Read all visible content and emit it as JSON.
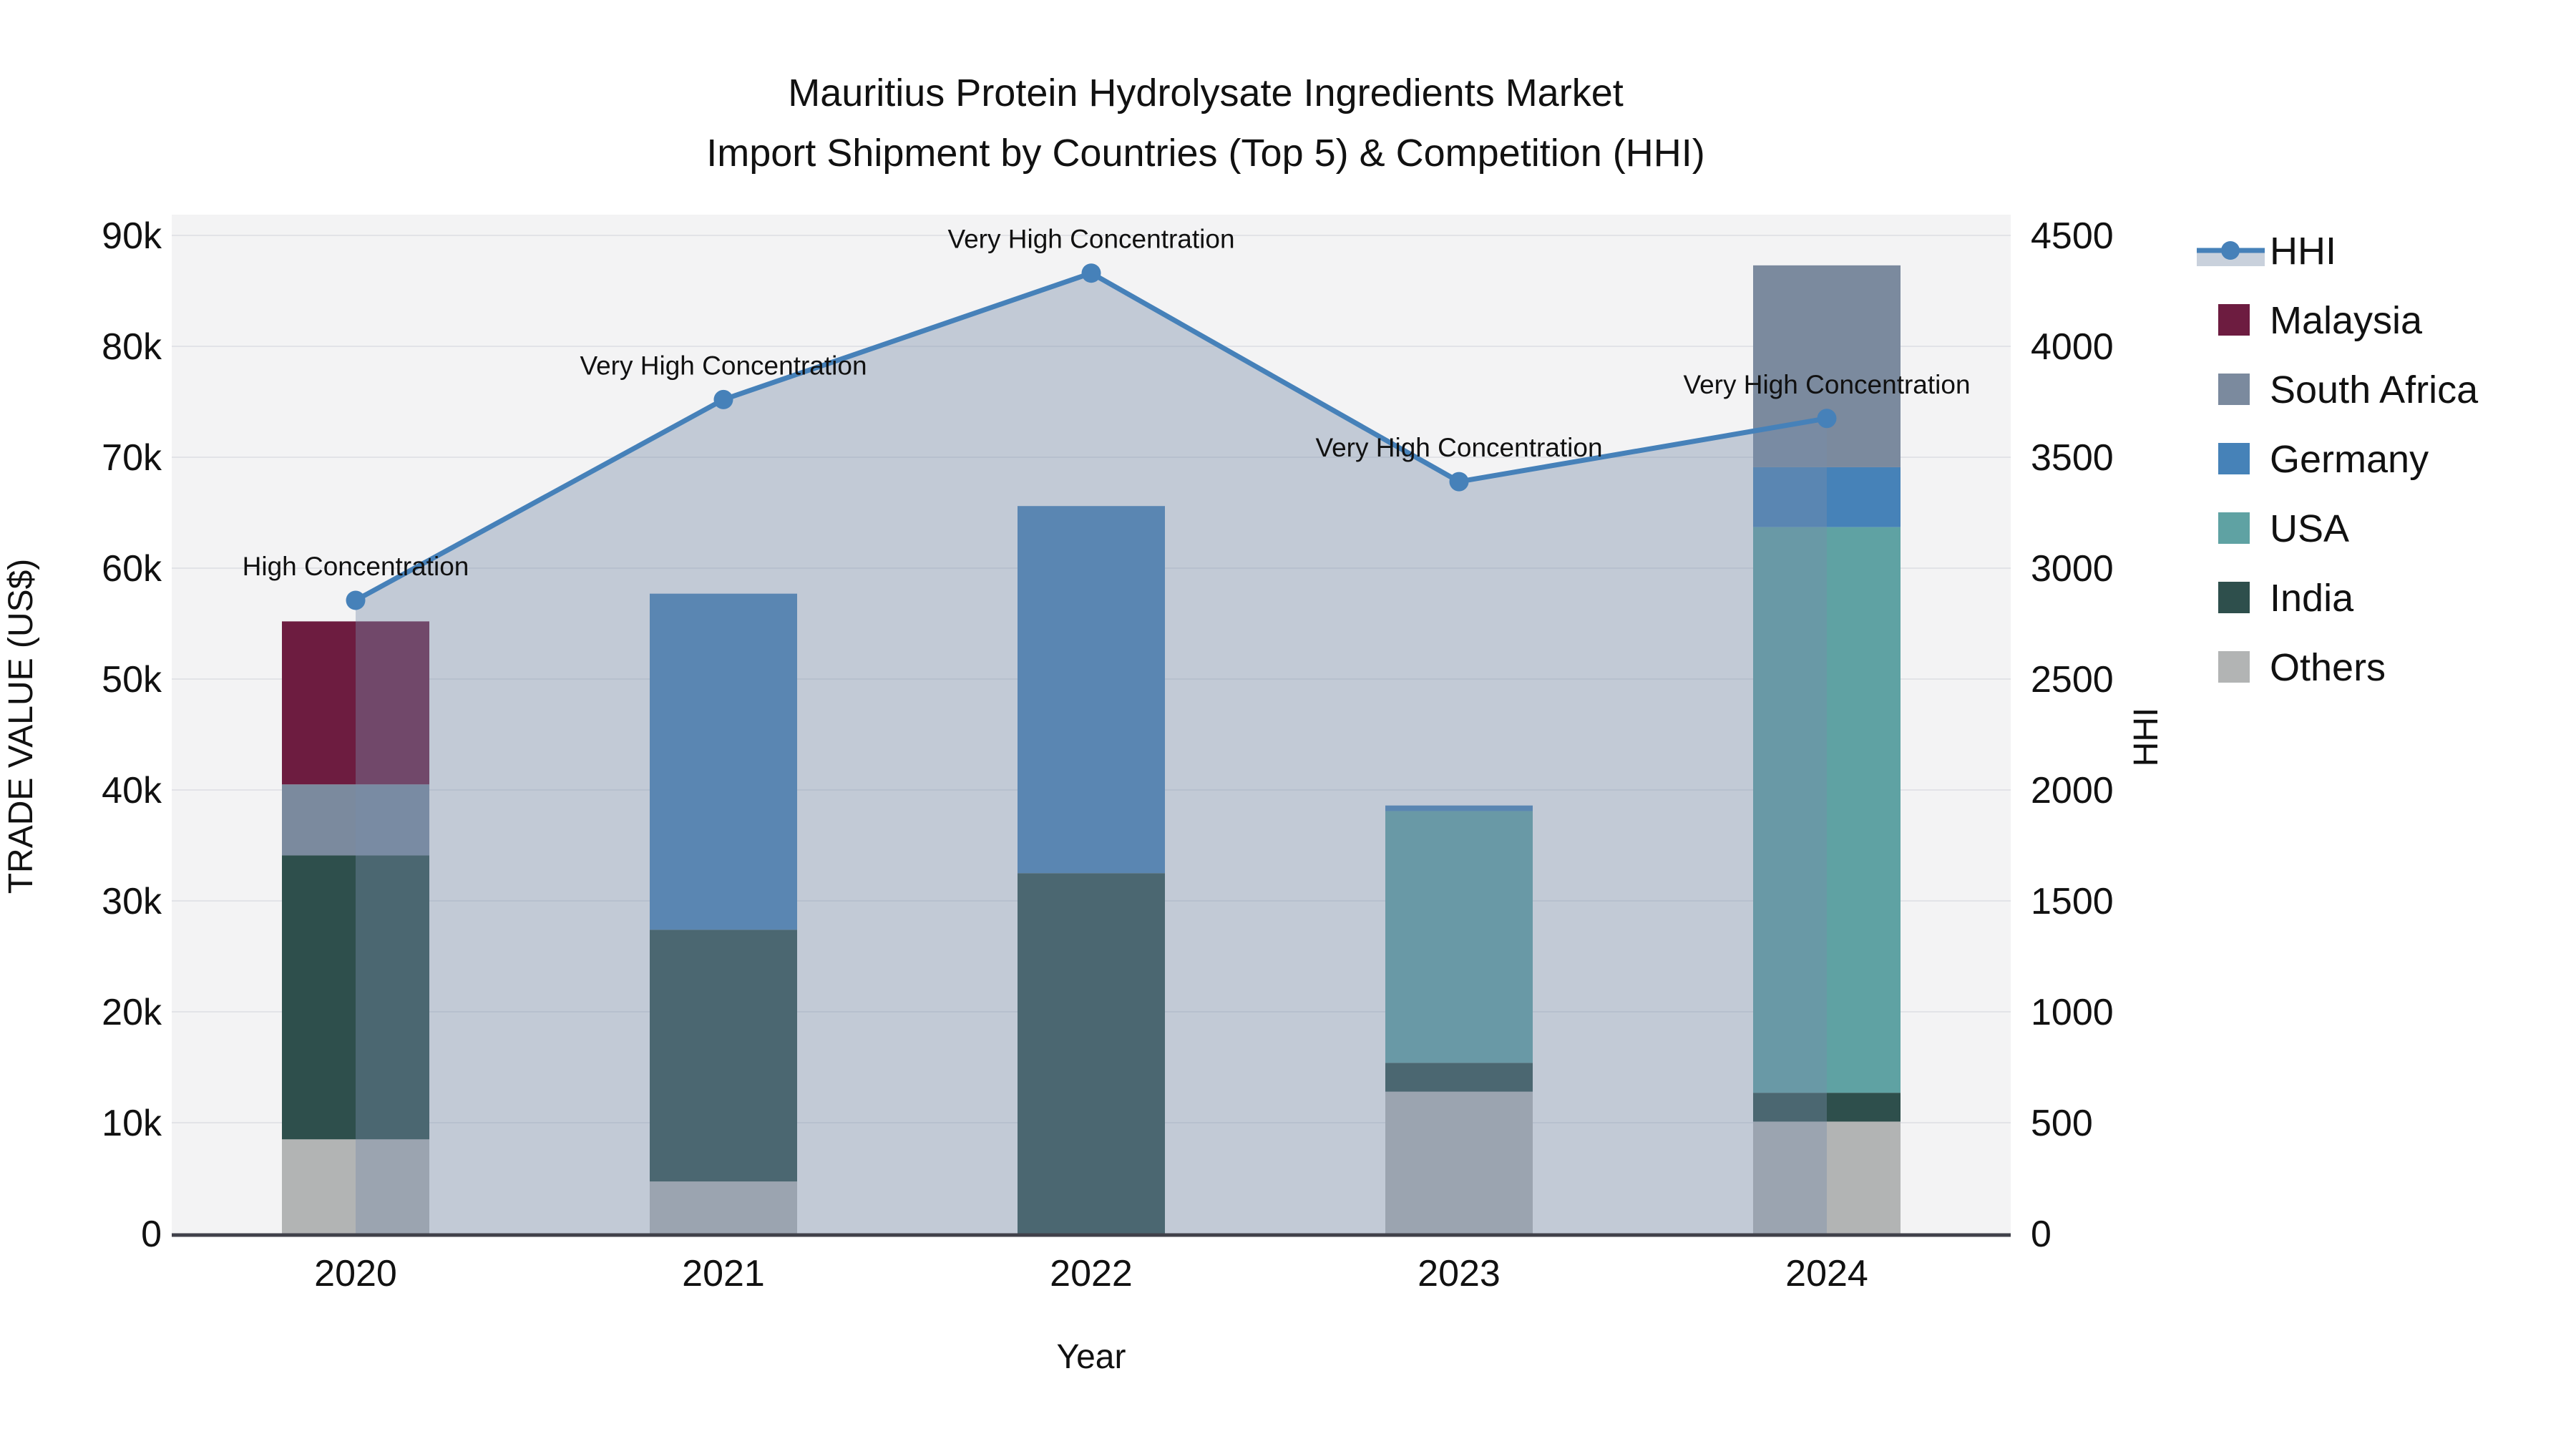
{
  "title": {
    "line1": "Mauritius Protein Hydrolysate Ingredients Market",
    "line2": "Import Shipment by Countries (Top 5) & Competition (HHI)"
  },
  "legend": {
    "items": [
      {
        "label": "HHI",
        "type": "line",
        "color": "#4681b9",
        "band": "#c9d1dc"
      },
      {
        "label": "Malaysia",
        "type": "swatch",
        "color": "#6d1c40"
      },
      {
        "label": "South Africa",
        "type": "swatch",
        "color": "#7b8a9e"
      },
      {
        "label": "Germany",
        "type": "swatch",
        "color": "#4682b8"
      },
      {
        "label": "USA",
        "type": "swatch",
        "color": "#5fa2a3"
      },
      {
        "label": "India",
        "type": "swatch",
        "color": "#2e4f4c"
      },
      {
        "label": "Others",
        "type": "swatch",
        "color": "#b2b4b4"
      }
    ]
  },
  "chart_data": {
    "type": "bar",
    "subtype": "stacked-bars-with-line",
    "categories": [
      "2020",
      "2021",
      "2022",
      "2023",
      "2024"
    ],
    "bar_value_unit": "US$",
    "series": [
      {
        "name": "Others",
        "color": "#b2b4b4",
        "values": [
          8500,
          4700,
          0,
          12800,
          10100
        ]
      },
      {
        "name": "India",
        "color": "#2e4f4c",
        "values": [
          25600,
          22700,
          32500,
          2600,
          2600
        ]
      },
      {
        "name": "USA",
        "color": "#5fa2a3",
        "values": [
          0,
          0,
          0,
          22700,
          51000
        ]
      },
      {
        "name": "Germany",
        "color": "#4682b8",
        "values": [
          0,
          30300,
          33100,
          500,
          5400
        ]
      },
      {
        "name": "South Africa",
        "color": "#7b8a9e",
        "values": [
          6400,
          0,
          0,
          0,
          18200
        ]
      },
      {
        "name": "Malaysia",
        "color": "#6d1c40",
        "values": [
          14700,
          0,
          0,
          0,
          0
        ]
      }
    ],
    "bar_totals": [
      55200,
      57700,
      65600,
      38600,
      87300
    ],
    "line": {
      "name": "HHI",
      "color": "#4681b9",
      "values": [
        2855,
        3760,
        4330,
        3390,
        3675
      ],
      "annotations": [
        "High Concentration",
        "Very High Concentration",
        "Very High Concentration",
        "Very High Concentration",
        "Very High Concentration"
      ],
      "area_fill": "rgba(120,140,170,0.40)"
    },
    "left_axis": {
      "label": "TRADE VALUE (US$)",
      "ticks": [
        "0",
        "10k",
        "20k",
        "30k",
        "40k",
        "50k",
        "60k",
        "70k",
        "80k",
        "90k"
      ],
      "min": 0,
      "max": 90000
    },
    "right_axis": {
      "label": "HHI",
      "ticks": [
        "0",
        "500",
        "1000",
        "1500",
        "2000",
        "2500",
        "3000",
        "3500",
        "4000",
        "4500"
      ],
      "min": 0,
      "max": 4500
    },
    "x_axis": {
      "label": "Year"
    },
    "legend_position": "right",
    "grid": true,
    "plot_bg": "#f3f3f4",
    "grid_color": "#e2e3e7",
    "axis_line_color": "#40414a"
  }
}
